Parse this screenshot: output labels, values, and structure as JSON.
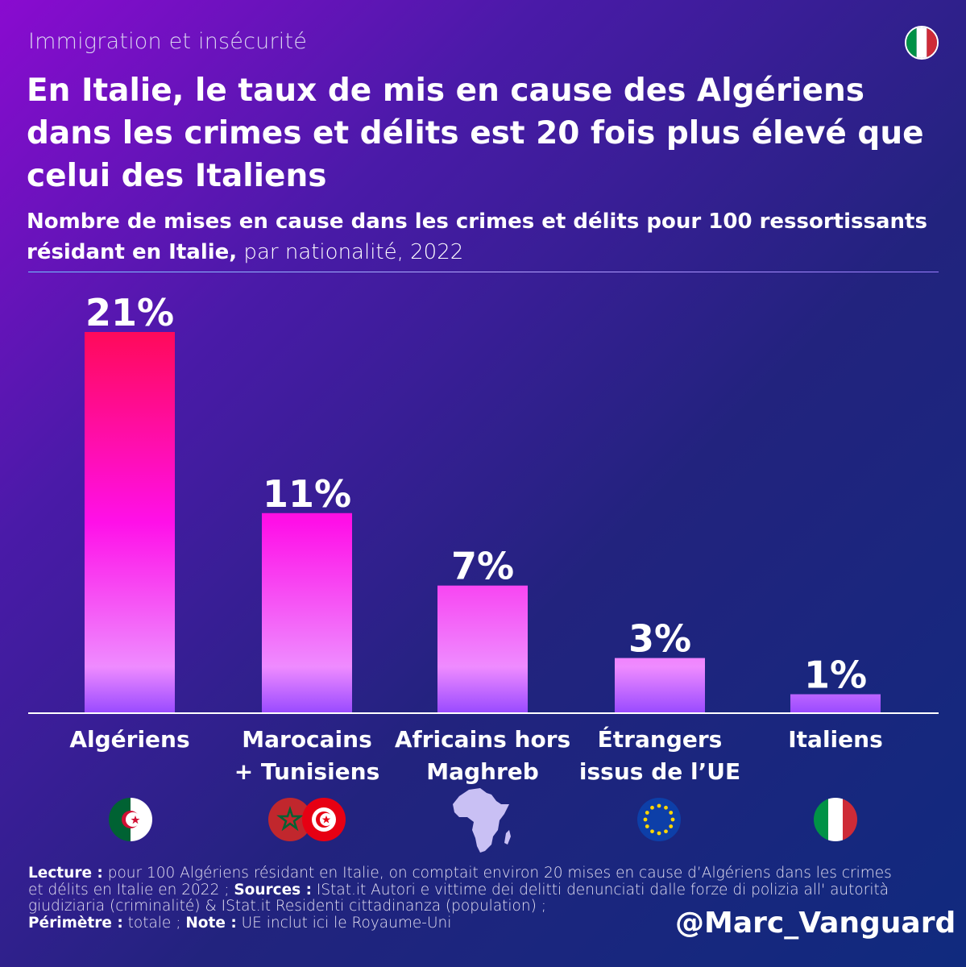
{
  "kicker": "Immigration et insécurité",
  "title": "En Italie, le taux de mis en cause des Algériens dans les crimes et délits est 20 fois plus élevé que celui des Italiens",
  "subtitle_bold": "Nombre de mises en cause dans les crimes et délits pour 100 ressortissants résidant en Italie,",
  "subtitle_rest": " par nationalité, 2022",
  "chart_data": {
    "type": "bar",
    "categories": [
      "Algériens",
      "Marocains + Tunisiens",
      "Africains hors Maghreb",
      "Étrangers issus de l’UE",
      "Italiens"
    ],
    "category_lines": [
      [
        "Algériens"
      ],
      [
        "Marocains",
        "+ Tunisiens"
      ],
      [
        "Africains hors",
        "Maghreb"
      ],
      [
        "Étrangers",
        "issus de l’UE"
      ],
      [
        "Italiens"
      ]
    ],
    "values": [
      21,
      11,
      7,
      3,
      1
    ],
    "value_labels": [
      "21%",
      "11%",
      "7%",
      "3%",
      "1%"
    ],
    "ylim": [
      0,
      21
    ],
    "title": "Nombre de mises en cause dans les crimes et délits pour 100 ressortissants résidant en Italie, par nationalité, 2022",
    "xlabel": "",
    "ylabel": "",
    "icons": [
      "algeria-flag-icon",
      "morocco-tunisia-flags-icon",
      "africa-map-icon",
      "eu-flag-icon",
      "italy-flag-icon"
    ]
  },
  "colors": {
    "bar_top": "#ff0a5a",
    "bar_mid": "#ff10e8",
    "bar_bottom": "#9a4bff",
    "italy_green": "#009246",
    "italy_red": "#ce2b37",
    "eu_blue": "#0d3fa8",
    "eu_star": "#ffd700"
  },
  "footer": {
    "lecture_label": "Lecture :",
    "lecture_text": " pour 100 Algériens résidant en Italie, on comptait environ 20 mises en cause d’Algériens dans les crimes et délits en Italie en 2022 ; ",
    "sources_label": "Sources :",
    "sources_text": " IStat.it Autori e vittime dei delitti denunciati dalle forze di polizia all' autorità giudiziaria (criminalité) & IStat.it Residenti cittadinanza (population) ;",
    "perimetre_label": "Périmètre :",
    "perimetre_text": " totale ; ",
    "note_label": "Note :",
    "note_text": " UE inclut ici le Royaume-Uni"
  },
  "handle": "@Marc_Vanguard"
}
